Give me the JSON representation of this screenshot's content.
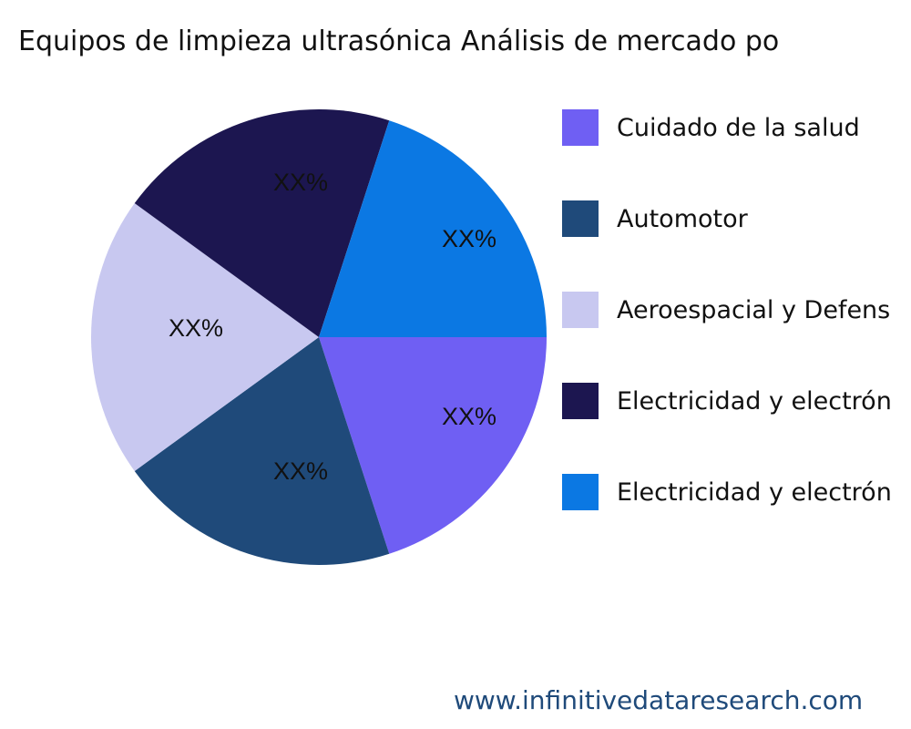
{
  "chart_data": {
    "type": "pie",
    "title": "Equipos de limpieza ultrasónica Análisis de mercado po",
    "categories": [
      "Cuidado de la salud",
      "Automotor",
      "Aeroespacial y Defens",
      "Electricidad y electrón",
      "Electricidad y electrón"
    ],
    "values": [
      20,
      20,
      20,
      20,
      20
    ],
    "data_labels": [
      "XX%",
      "XX%",
      "XX%",
      "XX%",
      "XX%"
    ],
    "colors": [
      "#6f5ff3",
      "#1f4a7a",
      "#c8c8f0",
      "#1c1650",
      "#0b78e3"
    ],
    "legend_placement": "right"
  },
  "watermark": "www.infinitivedataresearch.com"
}
